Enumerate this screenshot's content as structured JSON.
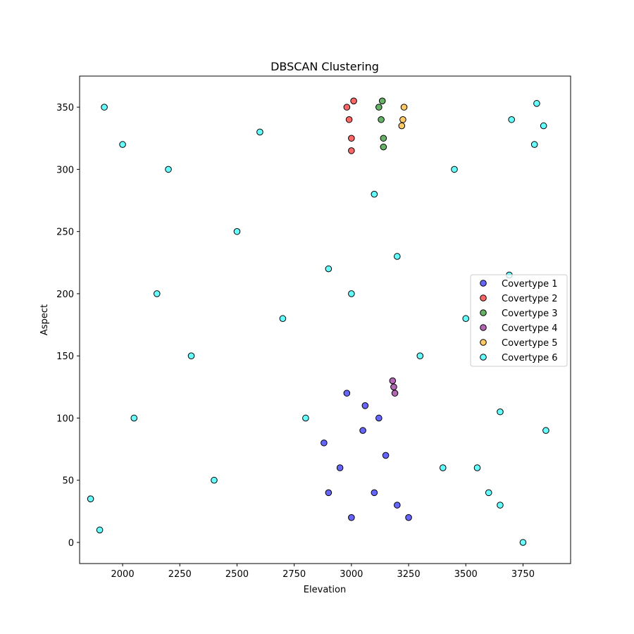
{
  "chart_data": {
    "type": "scatter",
    "title": "DBSCAN Clustering",
    "xlabel": "Elevation",
    "ylabel": "Aspect",
    "xlim": [
      1812,
      3958
    ],
    "ylim": [
      -17,
      375
    ],
    "x_ticks": [
      2000,
      2250,
      2500,
      2750,
      3000,
      3250,
      3500,
      3750
    ],
    "y_ticks": [
      0,
      50,
      100,
      150,
      200,
      250,
      300,
      350
    ],
    "grid": false,
    "legend_position": "center-right",
    "series": [
      {
        "name": "Covertype 1",
        "color": "#0000ff",
        "points": [
          [
            3000,
            20
          ],
          [
            2950,
            60
          ],
          [
            3050,
            90
          ],
          [
            3100,
            40
          ],
          [
            2900,
            40
          ],
          [
            3150,
            70
          ],
          [
            3200,
            30
          ],
          [
            2980,
            120
          ],
          [
            3060,
            110
          ],
          [
            3120,
            100
          ],
          [
            2880,
            80
          ],
          [
            3250,
            20
          ]
        ]
      },
      {
        "name": "Covertype 2",
        "color": "#ff0000",
        "points": [
          [
            2990,
            340
          ],
          [
            3000,
            325
          ],
          [
            2980,
            350
          ],
          [
            3010,
            355
          ],
          [
            3000,
            315
          ]
        ]
      },
      {
        "name": "Covertype 3",
        "color": "#008000",
        "points": [
          [
            3130,
            340
          ],
          [
            3140,
            325
          ],
          [
            3120,
            350
          ],
          [
            3135,
            355
          ],
          [
            3140,
            318
          ]
        ]
      },
      {
        "name": "Covertype 4",
        "color": "#800080",
        "points": [
          [
            3185,
            125
          ],
          [
            3190,
            120
          ],
          [
            3180,
            130
          ]
        ]
      },
      {
        "name": "Covertype 5",
        "color": "#ffa500",
        "points": [
          [
            3225,
            340
          ],
          [
            3230,
            350
          ],
          [
            3220,
            335
          ]
        ]
      },
      {
        "name": "Covertype 6",
        "color": "#00ffff",
        "points": [
          [
            1860,
            35
          ],
          [
            1900,
            10
          ],
          [
            1920,
            350
          ],
          [
            2000,
            320
          ],
          [
            2050,
            100
          ],
          [
            2150,
            200
          ],
          [
            2200,
            300
          ],
          [
            2300,
            150
          ],
          [
            2400,
            50
          ],
          [
            2500,
            250
          ],
          [
            2600,
            330
          ],
          [
            2700,
            180
          ],
          [
            2800,
            100
          ],
          [
            2900,
            220
          ],
          [
            3000,
            200
          ],
          [
            3100,
            280
          ],
          [
            3200,
            230
          ],
          [
            3300,
            150
          ],
          [
            3400,
            60
          ],
          [
            3450,
            300
          ],
          [
            3500,
            180
          ],
          [
            3550,
            60
          ],
          [
            3600,
            40
          ],
          [
            3650,
            30
          ],
          [
            3700,
            340
          ],
          [
            3750,
            0
          ],
          [
            3800,
            320
          ],
          [
            3850,
            90
          ],
          [
            3840,
            335
          ],
          [
            3810,
            353
          ],
          [
            3690,
            215
          ],
          [
            3650,
            105
          ]
        ]
      }
    ]
  }
}
